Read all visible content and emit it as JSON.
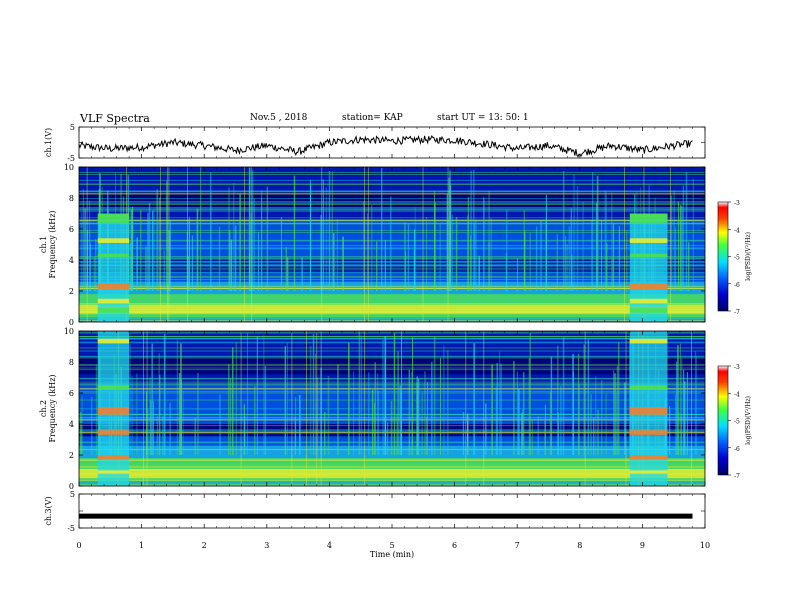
{
  "header": {
    "title": "VLF Spectra",
    "date": "Nov.5 , 2018",
    "station": "station= KAP",
    "start": "start UT =  13: 50: 1"
  },
  "chart_data": [
    {
      "type": "line",
      "name": "ch1-waveform",
      "ylabel": "ch.1(V)",
      "yticks": [
        "5",
        "-5"
      ],
      "ylim": [
        -5,
        5
      ],
      "xlim": [
        0,
        10
      ],
      "x": [
        0.0,
        0.5,
        1.0,
        1.5,
        2.0,
        2.5,
        3.0,
        3.5,
        4.0,
        4.5,
        5.0,
        5.5,
        6.0,
        6.5,
        7.0,
        7.5,
        8.0,
        8.5,
        9.0,
        9.5,
        9.8
      ],
      "y": [
        -1,
        -2,
        -1.5,
        0,
        -1,
        -2.5,
        -1,
        -3,
        0,
        1,
        0.5,
        1,
        0.8,
        -0.5,
        -2,
        -1,
        -3.5,
        -1,
        -2.5,
        -1,
        -0.3
      ]
    },
    {
      "type": "heatmap",
      "name": "ch1-spectrogram",
      "ylabel": "ch.1",
      "ylabel2": "Frequency (kHz)",
      "yticks": [
        "0",
        "2",
        "4",
        "6",
        "8",
        "10"
      ],
      "ylim": [
        0,
        10
      ],
      "xlim": [
        0,
        10
      ],
      "colorbar": {
        "label": "log(PSD)(V²/Hz)",
        "ticks": [
          "-3",
          "-4",
          "-5",
          "-6",
          "-7"
        ],
        "range": [
          -7,
          -3
        ]
      },
      "bright_intervals_min": [
        [
          0.3,
          0.8
        ],
        [
          8.8,
          9.4
        ]
      ]
    },
    {
      "type": "heatmap",
      "name": "ch2-spectrogram",
      "ylabel": "ch.2",
      "ylabel2": "Frequency (kHz)",
      "yticks": [
        "0",
        "2",
        "4",
        "6",
        "8",
        "10"
      ],
      "ylim": [
        0,
        10
      ],
      "xlim": [
        0,
        10
      ],
      "colorbar": {
        "label": "log(PSD)(V²/Hz)",
        "ticks": [
          "-3",
          "-4",
          "-5",
          "-6",
          "-7"
        ],
        "range": [
          -7,
          -3
        ]
      },
      "bright_intervals_min": [
        [
          0.3,
          0.8
        ],
        [
          8.8,
          9.4
        ]
      ]
    },
    {
      "type": "line",
      "name": "ch3-waveform",
      "ylabel": "ch.3(V)",
      "yticks": [
        "5",
        "-5"
      ],
      "ylim": [
        -5,
        5
      ],
      "xlim": [
        0,
        10
      ],
      "x": [
        0,
        9.8
      ],
      "y": [
        -1.5,
        -1.5
      ],
      "xlabel": "Time (min)",
      "xticks": [
        "0",
        "1",
        "2",
        "3",
        "4",
        "5",
        "6",
        "7",
        "8",
        "9",
        "10"
      ]
    }
  ],
  "colors": {
    "dark": "#000070",
    "deep": "#0018b0",
    "blue": "#0050e0",
    "cyan": "#22d8e8",
    "green": "#4ee04e",
    "yellow": "#e8ec30",
    "orange": "#f08030",
    "red": "#e82020"
  }
}
